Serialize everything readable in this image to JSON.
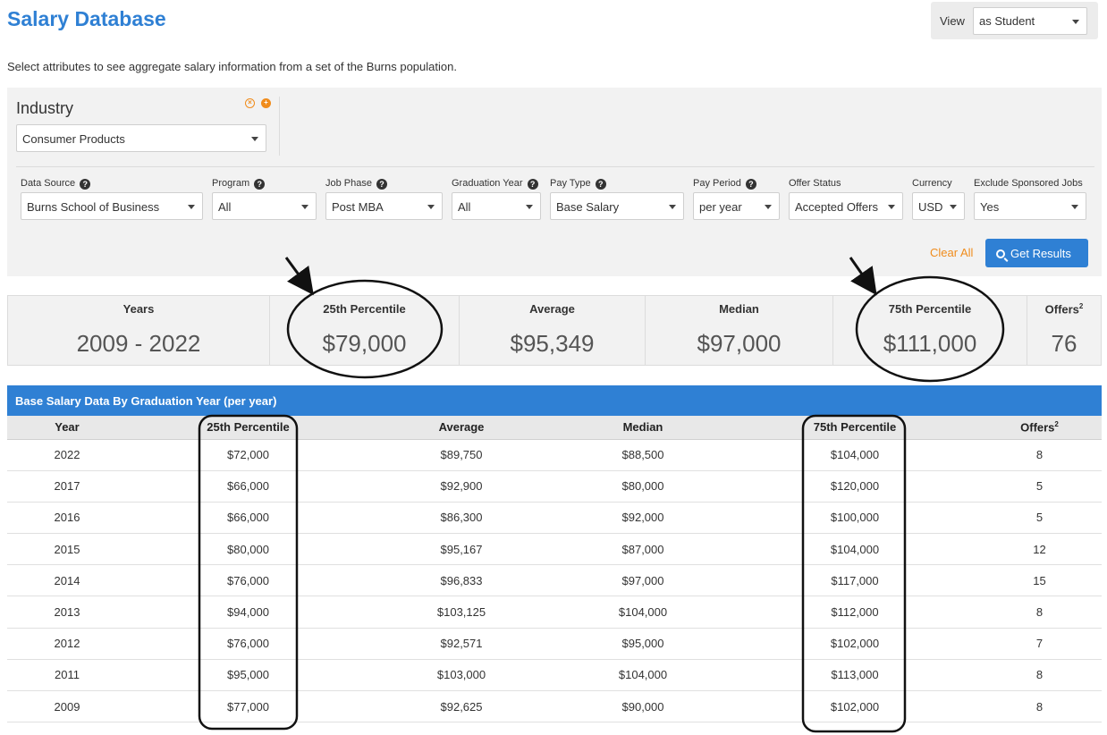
{
  "page": {
    "title": "Salary Database",
    "intro": "Select attributes to see aggregate salary information from a set of the Burns population."
  },
  "view": {
    "label": "View",
    "value": "as Student"
  },
  "industry": {
    "label": "Industry",
    "value": "Consumer Products"
  },
  "filters": [
    {
      "label": "Data Source",
      "help": true,
      "value": "Burns School of Business"
    },
    {
      "label": "Program",
      "help": true,
      "value": "All"
    },
    {
      "label": "Job Phase",
      "help": true,
      "value": "Post MBA"
    },
    {
      "label": "Graduation Year",
      "help": true,
      "value": "All"
    },
    {
      "label": "Pay Type",
      "help": true,
      "value": "Base Salary"
    },
    {
      "label": "Pay Period",
      "help": true,
      "value": "per year"
    },
    {
      "label": "Offer Status",
      "help": false,
      "value": "Accepted Offers"
    },
    {
      "label": "Currency",
      "help": false,
      "value": "USD"
    },
    {
      "label": "Exclude Sponsored Jobs",
      "help": false,
      "value": "Yes"
    }
  ],
  "actions": {
    "clear_all": "Clear All",
    "get_results": "Get Results"
  },
  "summary": {
    "years_label": "Years",
    "years_value": "2009 - 2022",
    "p25_label": "25th Percentile",
    "p25_value": "$79,000",
    "avg_label": "Average",
    "avg_value": "$95,349",
    "median_label": "Median",
    "median_value": "$97,000",
    "p75_label": "75th Percentile",
    "p75_value": "$111,000",
    "offers_label": "Offers",
    "offers_sup": "2",
    "offers_value": "76"
  },
  "table": {
    "title": "Base Salary Data By Graduation Year (per year)",
    "headers": [
      "Year",
      "25th Percentile",
      "Average",
      "Median",
      "75th Percentile",
      "Offers"
    ],
    "offers_sup": "2",
    "rows": [
      [
        "2022",
        "$72,000",
        "$89,750",
        "$88,500",
        "$104,000",
        "8"
      ],
      [
        "2017",
        "$66,000",
        "$92,900",
        "$80,000",
        "$120,000",
        "5"
      ],
      [
        "2016",
        "$66,000",
        "$86,300",
        "$92,000",
        "$100,000",
        "5"
      ],
      [
        "2015",
        "$80,000",
        "$95,167",
        "$87,000",
        "$104,000",
        "12"
      ],
      [
        "2014",
        "$76,000",
        "$96,833",
        "$97,000",
        "$117,000",
        "15"
      ],
      [
        "2013",
        "$94,000",
        "$103,125",
        "$104,000",
        "$112,000",
        "8"
      ],
      [
        "2012",
        "$76,000",
        "$92,571",
        "$95,000",
        "$102,000",
        "7"
      ],
      [
        "2011",
        "$95,000",
        "$103,000",
        "$104,000",
        "$113,000",
        "8"
      ],
      [
        "2009",
        "$77,000",
        "$92,625",
        "$90,000",
        "$102,000",
        "8"
      ]
    ]
  },
  "colors": {
    "accent": "#2f80d4",
    "orange": "#f08c1c",
    "panel": "#f2f2f2"
  }
}
